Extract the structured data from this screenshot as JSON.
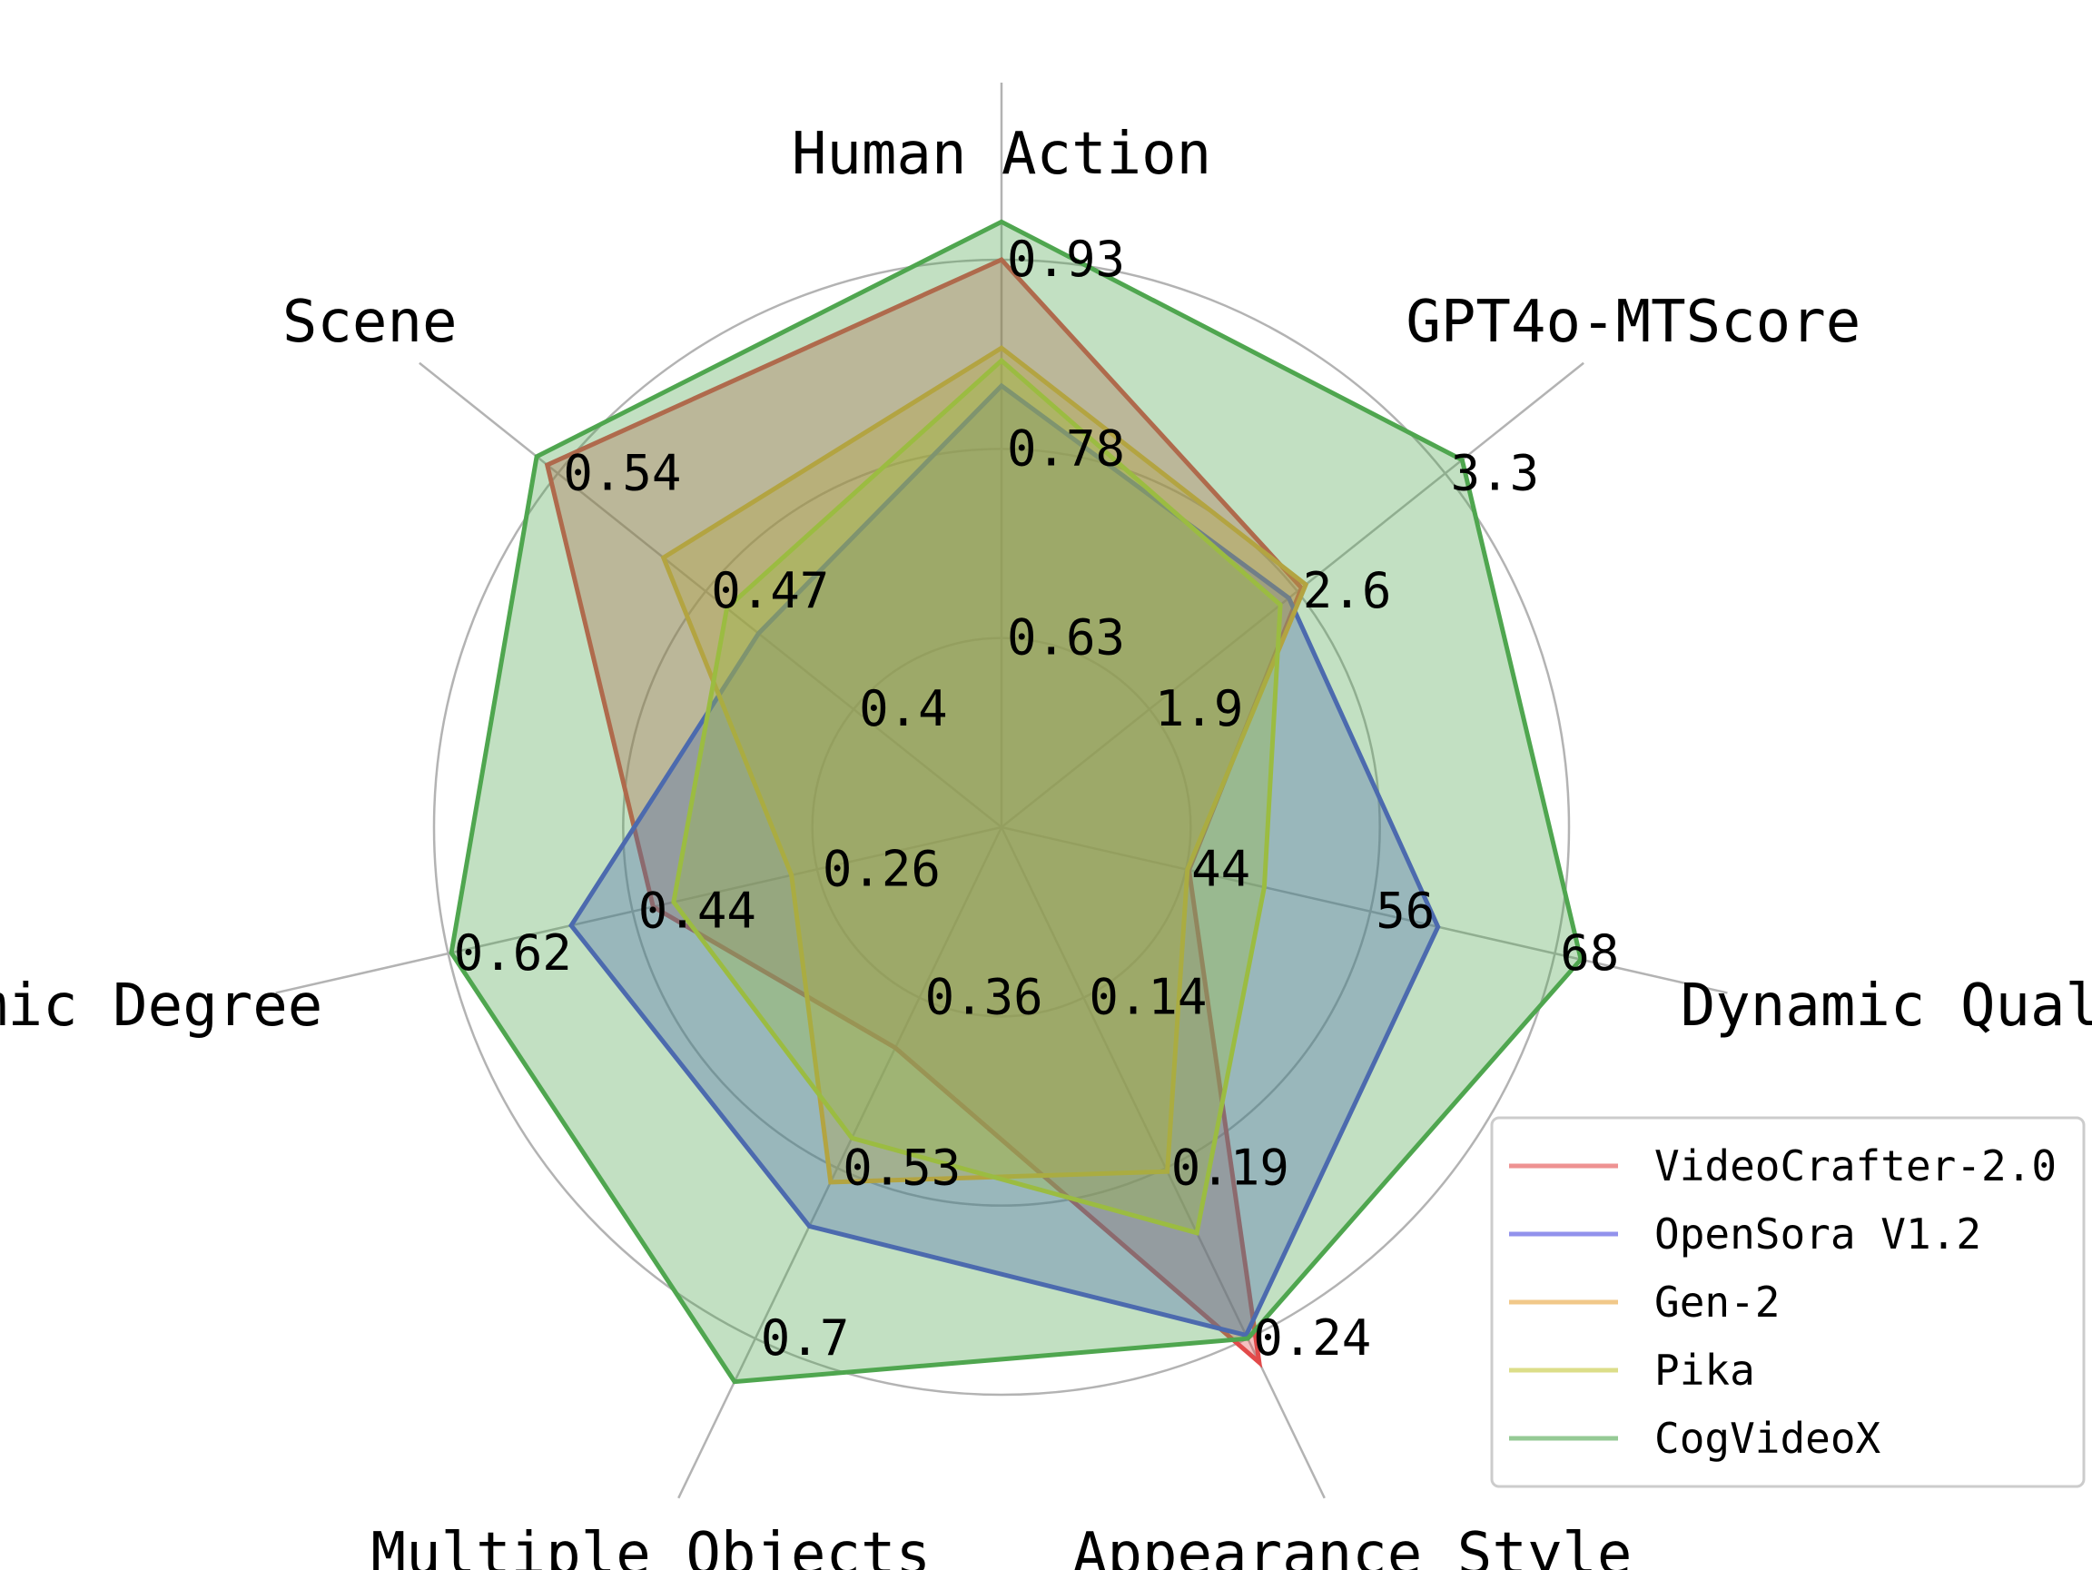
{
  "chart_data": {
    "type": "radar",
    "axes": [
      {
        "label": "Human Action",
        "ticks": [
          "0.63",
          "0.78",
          "0.93"
        ],
        "min": 0.48,
        "max": 0.93
      },
      {
        "label": "GPT4o-MTScore",
        "ticks": [
          "1.9",
          "2.6",
          "3.3"
        ],
        "min": 1.2,
        "max": 3.3
      },
      {
        "label": "Dynamic Quality",
        "ticks": [
          "44",
          "56",
          "68"
        ],
        "min": 32,
        "max": 68
      },
      {
        "label": "Appearance Style",
        "ticks": [
          "0.14",
          "0.19",
          "0.24"
        ],
        "min": 0.09,
        "max": 0.24
      },
      {
        "label": "Multiple Objects",
        "ticks": [
          "0.36",
          "0.53",
          "0.7"
        ],
        "min": 0.19,
        "max": 0.7
      },
      {
        "label": "Dynamic Degree",
        "ticks": [
          "0.26",
          "0.44",
          "0.62"
        ],
        "min": 0.08,
        "max": 0.62
      },
      {
        "label": "Scene",
        "ticks": [
          "0.4",
          "0.47",
          "0.54"
        ],
        "min": 0.33,
        "max": 0.54
      }
    ],
    "series": [
      {
        "name": "VideoCrafter-2.0",
        "color": "#e24a4a",
        "values": [
          0.93,
          2.62,
          44.2,
          0.247,
          0.41,
          0.42,
          0.545
        ]
      },
      {
        "name": "OpenSora V1.2",
        "color": "#4a4ae0",
        "values": [
          0.83,
          2.56,
          60.4,
          0.239,
          0.588,
          0.5,
          0.445
        ]
      },
      {
        "name": "Gen-2",
        "color": "#e8a33a",
        "values": [
          0.86,
          2.64,
          44.1,
          0.191,
          0.544,
          0.285,
          0.49
        ]
      },
      {
        "name": "Pika",
        "color": "#c4c83a",
        "values": [
          0.85,
          2.52,
          49.1,
          0.209,
          0.5,
          0.4,
          0.46
        ]
      },
      {
        "name": "CogVideoX",
        "color": "#4fa64f",
        "values": [
          0.96,
          3.38,
          69.7,
          0.24,
          0.743,
          0.617,
          0.55
        ]
      }
    ],
    "legend": "bottom-right",
    "grid": true
  }
}
